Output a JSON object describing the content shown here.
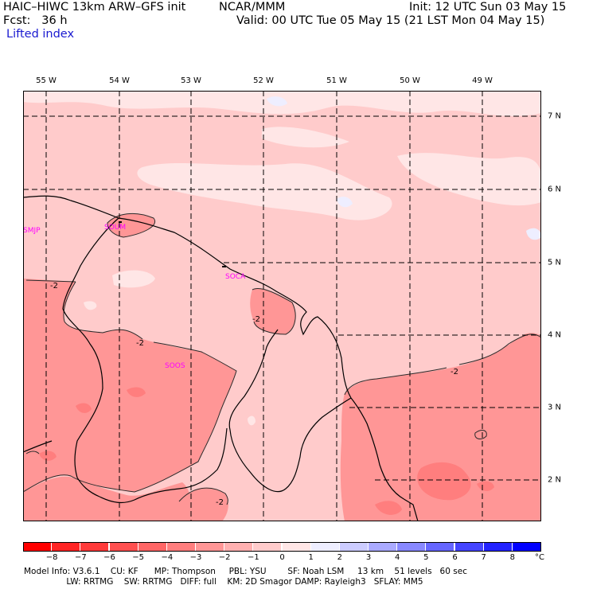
{
  "header": {
    "model_title": "HAIC–HIWC 13km ARW–GFS init",
    "org": "NCAR/MMM",
    "init": "Init: 12 UTC Sun 03 May 15",
    "fcst": "Fcst:   36 h",
    "valid": "Valid: 00 UTC Tue 05 May 15 (21 LST Mon 04 May 15)",
    "field": "Lifted index"
  },
  "axes": {
    "longitudes": [
      "55 W",
      "54 W",
      "53 W",
      "52 W",
      "51 W",
      "50 W",
      "49 W"
    ],
    "latitudes": [
      "7 N",
      "6 N",
      "5 N",
      "4 N",
      "3 N",
      "2 N"
    ]
  },
  "stations": [
    "SMJP",
    "SOUM",
    "SOCA",
    "SOOS"
  ],
  "contour_labels": [
    "-2",
    "-2",
    "-2",
    "-2",
    "-2",
    "-2"
  ],
  "colorbar": {
    "unit": "°C",
    "ticks": [
      "−8",
      "−7",
      "−6",
      "−5",
      "−4",
      "−3",
      "−2",
      "−1",
      "0",
      "1",
      "2",
      "3",
      "4",
      "5",
      "6",
      "7",
      "8"
    ],
    "colors": [
      "#ff0000",
      "#ff2424",
      "#ff3a3a",
      "#ff5050",
      "#ff6666",
      "#ff7e7e",
      "#ff9696",
      "#ffb0b0",
      "#ffcbcb",
      "#ffe6e6",
      "#eeeeff",
      "#ccccff",
      "#aaaaff",
      "#8888ff",
      "#6666ff",
      "#4444ff",
      "#2222ff",
      "#0000ff"
    ]
  },
  "footer": {
    "line1": "Model Info: V3.6.1    CU: KF      MP: Thompson     PBL: YSU        SF: Noah LSM     13 km    51 levels   60 sec",
    "line2": "                LW: RRTMG    SW: RRTMG   DIFF: full    KM: 2D Smagor DAMP: Rayleigh3   SFLAY: MM5"
  }
}
